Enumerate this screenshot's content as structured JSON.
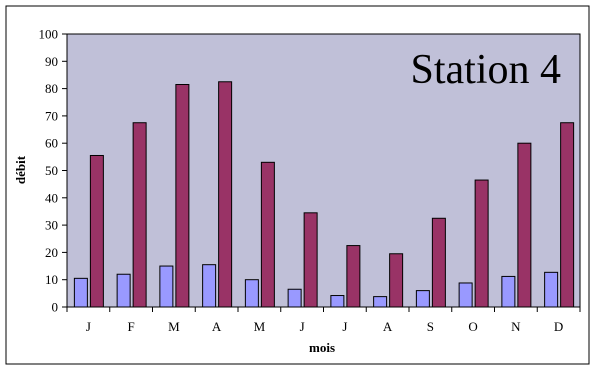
{
  "chart_data": {
    "type": "bar",
    "title": "Station 4",
    "xlabel": "mois",
    "ylabel": "débit",
    "categories": [
      "J",
      "F",
      "M",
      "A",
      "M",
      "J",
      "J",
      "A",
      "S",
      "O",
      "N",
      "D"
    ],
    "series": [
      {
        "values": [
          10.5,
          12,
          15,
          15.5,
          10,
          6.5,
          4.2,
          3.8,
          6,
          8.8,
          11.2,
          12.7
        ]
      },
      {
        "values": [
          55.5,
          67.5,
          81.5,
          82.5,
          53,
          34.5,
          22.5,
          19.5,
          32.5,
          46.5,
          60,
          67.5
        ]
      }
    ],
    "ylim": [
      0,
      100
    ],
    "yticks": [
      0,
      10,
      20,
      30,
      40,
      50,
      60,
      70,
      80,
      90,
      100
    ],
    "grid": false,
    "legend": "none",
    "colors": {
      "series": [
        "#9999ff",
        "#993366"
      ],
      "plot_background": "#c0c0d8",
      "border": "#000000"
    }
  }
}
